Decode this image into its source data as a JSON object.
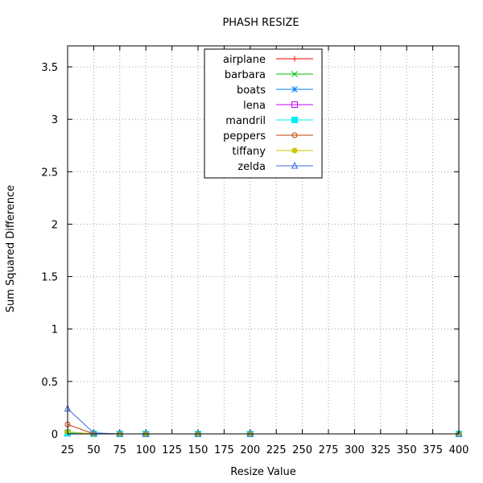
{
  "chart_data": {
    "type": "line",
    "title": "PHASH RESIZE",
    "xlabel": "Resize Value",
    "ylabel": "Sum Squared Difference",
    "xlim": [
      25,
      400
    ],
    "ylim": [
      0,
      3.7
    ],
    "x_ticks": [
      25,
      50,
      75,
      100,
      125,
      150,
      175,
      200,
      225,
      250,
      275,
      300,
      325,
      350,
      375,
      400
    ],
    "y_ticks": [
      0,
      0.5,
      1,
      1.5,
      2,
      2.5,
      3,
      3.5
    ],
    "y_tick_labels": [
      "0",
      "0.5",
      "1",
      "1.5",
      "2",
      "2.5",
      "3",
      "3.5"
    ],
    "grid": true,
    "legend_position": "top-center",
    "x": [
      25,
      50,
      75,
      100,
      150,
      200,
      400
    ],
    "series": [
      {
        "name": "airplane",
        "color": "#ff0000",
        "marker": "plus",
        "values": [
          0.01,
          0,
          0,
          0,
          0,
          0,
          0
        ]
      },
      {
        "name": "barbara",
        "color": "#00c000",
        "marker": "cross",
        "values": [
          0.01,
          0,
          0,
          0,
          0,
          0,
          0
        ]
      },
      {
        "name": "boats",
        "color": "#0080ff",
        "marker": "star",
        "values": [
          0.0,
          0,
          0,
          0,
          0,
          0,
          0
        ]
      },
      {
        "name": "lena",
        "color": "#c000ff",
        "marker": "box",
        "values": [
          0.01,
          0,
          0,
          0,
          0,
          0,
          0
        ]
      },
      {
        "name": "mandril",
        "color": "#00eeee",
        "marker": "filled-box",
        "values": [
          0.01,
          0,
          0,
          0,
          0,
          0,
          0
        ]
      },
      {
        "name": "peppers",
        "color": "#c04000",
        "marker": "circle",
        "values": [
          0.09,
          0,
          0,
          0,
          0,
          0,
          0
        ]
      },
      {
        "name": "tiffany",
        "color": "#c8c800",
        "marker": "filled-circle",
        "values": [
          0.02,
          0,
          0,
          0,
          0,
          0,
          0
        ]
      },
      {
        "name": "zelda",
        "color": "#4169e1",
        "marker": "triangle",
        "values": [
          0.24,
          0.01,
          0,
          0,
          0,
          0,
          0
        ]
      }
    ]
  }
}
